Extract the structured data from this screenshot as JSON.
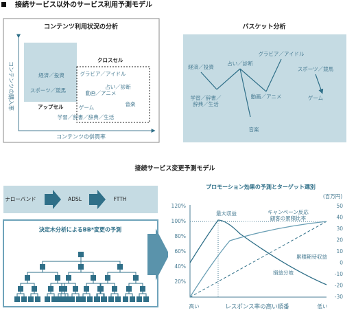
{
  "header": {
    "title": "接続サービス以外のサービス利用予測モデル"
  },
  "content_analysis": {
    "title": "コンテンツ利用状況の分析",
    "y_label": "コンテンツの購入率",
    "x_label": "コンテンツの併買率",
    "upsell": "アップセル",
    "crosssell": "クロスセル",
    "labels": [
      "経済／投資",
      "スポーツ／競馬",
      "グラビア／アイドル",
      "占い／診断",
      "動画／アニメ",
      "ゲーム",
      "音楽",
      "学習／辞書／辞典／生活"
    ]
  },
  "basket": {
    "title": "バスケット分析",
    "nodes": [
      {
        "label": [
          "経済／投資"
        ]
      },
      {
        "label": [
          "占い／診断"
        ]
      },
      {
        "label": [
          "グラビア／アイドル"
        ]
      },
      {
        "label": [
          "スポーツ／競馬"
        ]
      },
      {
        "label": [
          "学習／辞書／",
          "辞典／生活"
        ]
      },
      {
        "label": [
          "動画／アニメ"
        ]
      },
      {
        "label": [
          "ゲーム"
        ]
      },
      {
        "label": [
          "音楽"
        ]
      }
    ]
  },
  "change_model": {
    "title": "接続サービス変更予測モデル",
    "flow": [
      "ナローバンド",
      "ADSL",
      "FTTH"
    ],
    "tree_title": "決定木分析によるBB*変更の予測"
  },
  "promo": {
    "title": "プロモーション効果の予測とターゲット選別",
    "unit": "(百万円)",
    "left_ticks": [
      "120%",
      "100%",
      "80%",
      "60%",
      "40%",
      "20%"
    ],
    "right_ticks": [
      "50",
      "40",
      "30",
      "20",
      "10",
      "0",
      "-10",
      "-20",
      "-30"
    ],
    "max_profit": "最大収益",
    "response": [
      "キャンペーン反応",
      "顧客の累積比率"
    ],
    "expected": "累積期待収益",
    "breakeven": "損益分岐",
    "x_high": "高い",
    "x_label": "レスポンス率の高い順番",
    "x_low": "低い"
  }
}
